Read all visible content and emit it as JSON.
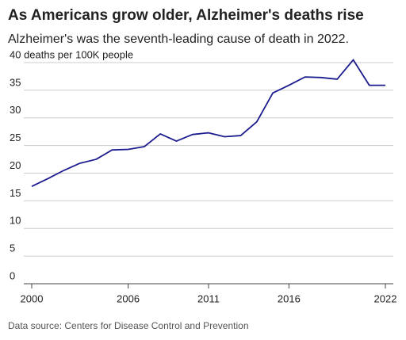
{
  "chart_data": {
    "type": "line",
    "title": "As Americans grow older, Alzheimer's deaths rise",
    "subtitle": "Alzheimer's was the seventh-leading cause of death in 2022.",
    "source": "Data source: Centers for Disease Control and Prevention",
    "x": [
      2000,
      2001,
      2002,
      2003,
      2004,
      2005,
      2006,
      2007,
      2008,
      2009,
      2010,
      2011,
      2012,
      2013,
      2014,
      2015,
      2016,
      2017,
      2018,
      2019,
      2020,
      2021,
      2022
    ],
    "series": [
      {
        "color": "#1c1c8f",
        "values": [
          17.6,
          19.0,
          20.5,
          21.8,
          22.5,
          24.2,
          24.3,
          24.8,
          27.1,
          25.8,
          27.0,
          27.3,
          26.6,
          26.8,
          29.3,
          34.5,
          35.9,
          37.4,
          37.3,
          37.0,
          40.5,
          35.9,
          35.9
        ]
      }
    ],
    "xlim": [
      2000,
      2022
    ],
    "xticks": [
      2000,
      2006,
      2011,
      2016,
      2022
    ],
    "ylim": [
      0,
      40
    ],
    "yticks": [
      0,
      5,
      10,
      15,
      20,
      25,
      30,
      35,
      {
        "value": 40,
        "label": "40 deaths per 100K people"
      }
    ],
    "grid": true
  }
}
